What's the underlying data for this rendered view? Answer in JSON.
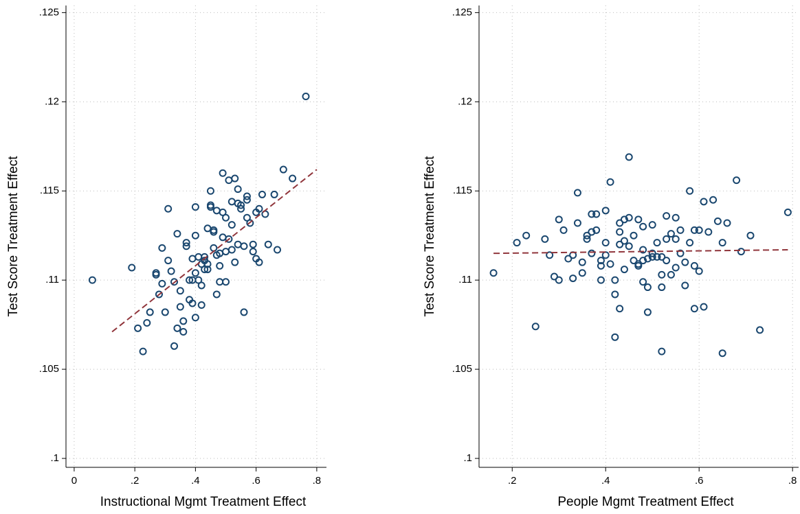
{
  "chart_data": [
    {
      "type": "scatter",
      "xlabel": "Instructional Mgmt Treatment Effect",
      "ylabel": "Test Score Treatment Effect",
      "xlim": [
        -0.027,
        0.832
      ],
      "ylim": [
        0.0995,
        0.1254
      ],
      "xticks": [
        0,
        {
          "value": 0.2,
          "label": ".2"
        },
        {
          "value": 0.4,
          "label": ".4"
        },
        {
          "value": 0.6,
          "label": ".6"
        },
        {
          "value": 0.8,
          "label": ".8"
        }
      ],
      "yticks": [
        {
          "value": 0.1,
          "label": ".1"
        },
        {
          "value": 0.105,
          "label": ".105"
        },
        {
          "value": 0.11,
          "label": ".11"
        },
        {
          "value": 0.115,
          "label": ".115"
        },
        {
          "value": 0.12,
          "label": ".12"
        },
        {
          "value": 0.125,
          "label": ".125"
        }
      ],
      "grid": true,
      "color": "#1a476f",
      "x": [
        0.06,
        0.19,
        0.21,
        0.227,
        0.24,
        0.25,
        0.27,
        0.27,
        0.28,
        0.29,
        0.29,
        0.3,
        0.31,
        0.31,
        0.32,
        0.33,
        0.33,
        0.34,
        0.34,
        0.35,
        0.35,
        0.36,
        0.36,
        0.37,
        0.37,
        0.38,
        0.38,
        0.39,
        0.39,
        0.39,
        0.4,
        0.4,
        0.4,
        0.4,
        0.41,
        0.41,
        0.42,
        0.42,
        0.42,
        0.43,
        0.43,
        0.43,
        0.44,
        0.44,
        0.44,
        0.45,
        0.45,
        0.45,
        0.46,
        0.46,
        0.46,
        0.47,
        0.47,
        0.47,
        0.48,
        0.48,
        0.48,
        0.49,
        0.49,
        0.49,
        0.5,
        0.5,
        0.5,
        0.51,
        0.51,
        0.52,
        0.52,
        0.52,
        0.53,
        0.53,
        0.54,
        0.54,
        0.54,
        0.55,
        0.55,
        0.56,
        0.56,
        0.57,
        0.57,
        0.57,
        0.58,
        0.59,
        0.59,
        0.6,
        0.6,
        0.61,
        0.61,
        0.62,
        0.63,
        0.64,
        0.66,
        0.67,
        0.69,
        0.72,
        0.764
      ],
      "y": [
        0.11,
        0.1107,
        0.1073,
        0.106,
        0.1076,
        0.1082,
        0.1103,
        0.1104,
        0.1092,
        0.1098,
        0.1118,
        0.1082,
        0.1111,
        0.114,
        0.1105,
        0.1063,
        0.1099,
        0.1073,
        0.1126,
        0.1085,
        0.1094,
        0.1071,
        0.1077,
        0.1121,
        0.1119,
        0.11,
        0.1089,
        0.1112,
        0.11,
        0.1087,
        0.1079,
        0.1141,
        0.1125,
        0.1104,
        0.11,
        0.1113,
        0.1097,
        0.1109,
        0.1086,
        0.1113,
        0.1111,
        0.1106,
        0.1129,
        0.1106,
        0.1109,
        0.1141,
        0.1142,
        0.115,
        0.1118,
        0.1128,
        0.1127,
        0.1139,
        0.1114,
        0.1092,
        0.1099,
        0.1108,
        0.1115,
        0.116,
        0.1138,
        0.1124,
        0.1099,
        0.1116,
        0.1135,
        0.1123,
        0.1156,
        0.1117,
        0.1144,
        0.1131,
        0.1157,
        0.111,
        0.1151,
        0.1143,
        0.112,
        0.1142,
        0.114,
        0.1082,
        0.1119,
        0.1147,
        0.1145,
        0.1135,
        0.1132,
        0.112,
        0.1116,
        0.1138,
        0.1112,
        0.111,
        0.114,
        0.1148,
        0.1137,
        0.112,
        0.1148,
        0.1117,
        0.1162,
        0.1157,
        0.1203
      ],
      "fit": {
        "color": "#90353b",
        "x": [
          0.125,
          0.8
        ],
        "y": [
          0.1071,
          0.1162
        ]
      }
    },
    {
      "type": "scatter",
      "xlabel": "People Mgmt Treatment Effect",
      "ylabel": "Test Score Treatment Effect",
      "xlim": [
        0.129,
        0.813
      ],
      "ylim": [
        0.0995,
        0.1254
      ],
      "xticks": [
        {
          "value": 0.2,
          "label": ".2"
        },
        {
          "value": 0.4,
          "label": ".4"
        },
        {
          "value": 0.6,
          "label": ".6"
        },
        {
          "value": 0.8,
          "label": ".8"
        }
      ],
      "yticks": [
        {
          "value": 0.1,
          "label": ".1"
        },
        {
          "value": 0.105,
          "label": ".105"
        },
        {
          "value": 0.11,
          "label": ".11"
        },
        {
          "value": 0.115,
          "label": ".115"
        },
        {
          "value": 0.12,
          "label": ".12"
        },
        {
          "value": 0.125,
          "label": ".125"
        }
      ],
      "grid": true,
      "color": "#1a476f",
      "x": [
        0.16,
        0.21,
        0.23,
        0.25,
        0.27,
        0.28,
        0.29,
        0.3,
        0.3,
        0.31,
        0.32,
        0.33,
        0.33,
        0.34,
        0.34,
        0.35,
        0.35,
        0.36,
        0.36,
        0.37,
        0.37,
        0.37,
        0.38,
        0.38,
        0.39,
        0.39,
        0.39,
        0.4,
        0.4,
        0.4,
        0.41,
        0.41,
        0.42,
        0.42,
        0.42,
        0.43,
        0.43,
        0.43,
        0.43,
        0.44,
        0.44,
        0.44,
        0.45,
        0.45,
        0.45,
        0.46,
        0.46,
        0.47,
        0.47,
        0.47,
        0.48,
        0.48,
        0.48,
        0.48,
        0.49,
        0.49,
        0.49,
        0.5,
        0.5,
        0.5,
        0.51,
        0.51,
        0.52,
        0.52,
        0.52,
        0.52,
        0.53,
        0.53,
        0.53,
        0.54,
        0.54,
        0.55,
        0.55,
        0.55,
        0.56,
        0.56,
        0.57,
        0.57,
        0.58,
        0.58,
        0.59,
        0.59,
        0.59,
        0.6,
        0.6,
        0.61,
        0.61,
        0.62,
        0.63,
        0.64,
        0.65,
        0.65,
        0.66,
        0.68,
        0.69,
        0.71,
        0.73,
        0.79
      ],
      "y": [
        0.1104,
        0.1121,
        0.1125,
        0.1074,
        0.1123,
        0.1114,
        0.1102,
        0.1134,
        0.11,
        0.1128,
        0.1112,
        0.1101,
        0.1114,
        0.1149,
        0.1132,
        0.111,
        0.1104,
        0.1123,
        0.1125,
        0.1127,
        0.1137,
        0.1115,
        0.1137,
        0.1128,
        0.1108,
        0.11,
        0.1111,
        0.1114,
        0.1121,
        0.1139,
        0.1155,
        0.1109,
        0.11,
        0.1092,
        0.1068,
        0.112,
        0.1132,
        0.1084,
        0.1127,
        0.1134,
        0.1122,
        0.1106,
        0.1135,
        0.1119,
        0.1169,
        0.1125,
        0.1111,
        0.1134,
        0.1109,
        0.1108,
        0.113,
        0.1111,
        0.1117,
        0.1099,
        0.1082,
        0.1096,
        0.1112,
        0.1115,
        0.1131,
        0.1113,
        0.1113,
        0.1121,
        0.1096,
        0.1103,
        0.1113,
        0.106,
        0.1111,
        0.1136,
        0.1123,
        0.1103,
        0.1126,
        0.1107,
        0.1135,
        0.1123,
        0.1128,
        0.1115,
        0.1097,
        0.111,
        0.115,
        0.1121,
        0.1108,
        0.1128,
        0.1084,
        0.1105,
        0.1128,
        0.1085,
        0.1144,
        0.1127,
        0.1145,
        0.1133,
        0.1121,
        0.1059,
        0.1132,
        0.1156,
        0.1116,
        0.1125,
        0.1072,
        0.1138
      ],
      "fit": {
        "color": "#90353b",
        "x": [
          0.16,
          0.79
        ],
        "y": [
          0.1115,
          0.1117
        ]
      }
    }
  ]
}
